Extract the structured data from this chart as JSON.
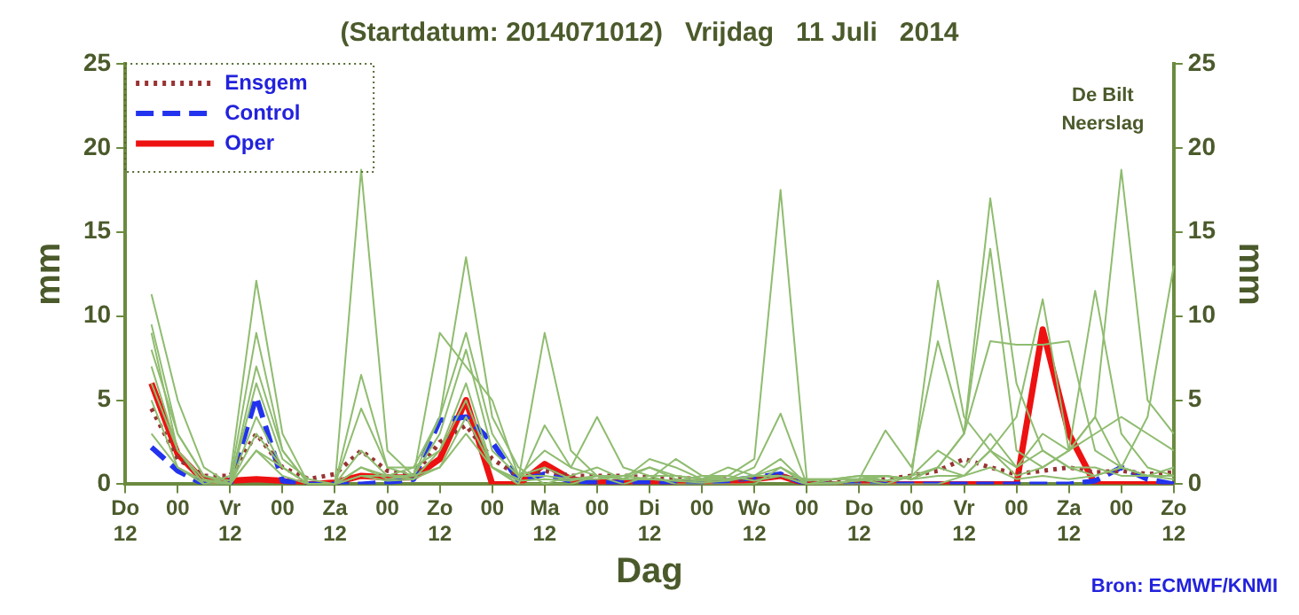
{
  "chart_data": {
    "type": "line",
    "title": "(Startdatum: 2014071012)   Vrijdag   11 Juli   2014",
    "xlabel": "Dag",
    "ylabel": "mm",
    "y2label": "mm",
    "annotations": [
      "De Bilt",
      "Neerslag",
      "Bron: ECMWF/KNMI"
    ],
    "categories": [
      "Do\n12",
      null,
      "00",
      null,
      "Vr\n12",
      null,
      "00",
      null,
      "Za\n12",
      null,
      "00",
      null,
      "Zo\n12",
      null,
      "00",
      null,
      "Ma\n12",
      null,
      "00",
      null,
      "Di\n12",
      null,
      "00",
      null,
      "Wo\n12",
      null,
      "00",
      null,
      "Do\n12",
      null,
      "00",
      null,
      "Vr\n12",
      null,
      "00",
      null,
      "Za\n12",
      null,
      "00",
      null,
      "Zo\n12"
    ],
    "ylim": [
      0,
      25
    ],
    "yticks": [
      0,
      5,
      10,
      15,
      20,
      25
    ],
    "y2lim": [
      0,
      25
    ],
    "y2ticks": [
      0,
      5,
      10,
      15,
      20,
      25
    ],
    "grid": false,
    "legend": "top left",
    "marker": "none",
    "line_style": "solid",
    "series": [
      {
        "color": "#8fbc6f",
        "values": [
          null,
          5,
          1,
          0,
          0,
          2,
          1,
          0,
          0,
          18.7,
          2,
          0.5,
          1,
          3,
          1,
          0,
          0,
          0,
          0.5,
          0,
          0.5,
          0,
          0,
          0,
          0,
          1,
          0,
          0,
          0,
          0,
          0,
          0,
          0.5,
          2,
          0.5,
          1,
          2,
          4,
          18.7,
          5,
          3
        ]
      },
      {
        "color": "#8fbc6f",
        "values": [
          null,
          8,
          3,
          0.5,
          0,
          3,
          1,
          0,
          0,
          2,
          0.5,
          0.5,
          4,
          13.5,
          4,
          1,
          0,
          0.5,
          1,
          0.3,
          0.3,
          0.2,
          0.5,
          0.5,
          0.2,
          0.5,
          0,
          0,
          0.3,
          0.2,
          0.5,
          1,
          3,
          17,
          6,
          2,
          1,
          0.5,
          1,
          0.5,
          1
        ]
      },
      {
        "color": "#8fbc6f",
        "values": [
          null,
          6,
          2,
          0,
          0.5,
          12.1,
          3,
          0,
          0,
          1,
          0.5,
          0.3,
          2,
          5,
          1,
          0,
          3.5,
          1,
          0.5,
          0.3,
          1.5,
          1,
          0.3,
          0.5,
          1.5,
          17.5,
          0.3,
          0.3,
          0.3,
          0,
          0.5,
          2,
          1,
          3,
          1,
          2,
          1,
          1,
          0.5,
          0.5,
          0.5
        ]
      },
      {
        "color": "#8fbc6f",
        "values": [
          null,
          11.3,
          5,
          1,
          0,
          7,
          2,
          0,
          0,
          1,
          0.3,
          0.5,
          3,
          8,
          2,
          0.5,
          1,
          0.3,
          0.5,
          0.3,
          1,
          0.5,
          0.3,
          1,
          0.5,
          1,
          0.2,
          0.3,
          0.5,
          0.2,
          0.5,
          12.1,
          4,
          2,
          1,
          3,
          2,
          11.5,
          3,
          1,
          0.5
        ]
      },
      {
        "color": "#8fbc6f",
        "values": [
          null,
          9,
          2,
          0,
          0,
          4,
          1,
          0,
          0,
          0.5,
          0.5,
          1,
          2,
          6,
          1,
          0.3,
          9,
          2,
          0.5,
          0.5,
          0.3,
          1.5,
          0.5,
          0.3,
          0.5,
          0.5,
          0,
          0.3,
          0.5,
          0.5,
          0.3,
          1,
          0.5,
          2,
          4,
          11,
          2,
          4,
          1,
          4,
          13
        ]
      },
      {
        "color": "#8fbc6f",
        "values": [
          null,
          9.5,
          3,
          0.5,
          0.2,
          9,
          2,
          0,
          0,
          4.5,
          1,
          1,
          4,
          9,
          3,
          0.5,
          2,
          1,
          4,
          1,
          0.5,
          0.5,
          0.3,
          0.3,
          1,
          4.2,
          0,
          0,
          0.3,
          3.2,
          1,
          8.5,
          3,
          14,
          2,
          1,
          2,
          3,
          4,
          3,
          2
        ]
      },
      {
        "color": "#8fbc6f",
        "values": [
          null,
          7,
          2,
          0.3,
          0,
          6,
          1.5,
          0.3,
          0,
          6.5,
          1,
          0.5,
          9,
          7,
          5,
          0.5,
          0.5,
          0.3,
          0.3,
          0.5,
          1,
          0.3,
          0.2,
          0.3,
          0.5,
          0.5,
          0.3,
          0.3,
          0.3,
          0.5,
          0.3,
          1,
          3,
          8.5,
          8.3,
          8.3,
          8.5,
          2,
          1,
          0.5,
          0.3
        ]
      },
      {
        "color": "#8fbc6f",
        "values": [
          null,
          3,
          1,
          0.2,
          0,
          2,
          0.5,
          0,
          0,
          0.5,
          0.2,
          0.3,
          1,
          4,
          1,
          0.2,
          0.3,
          0.2,
          0.5,
          0.3,
          0.3,
          0.2,
          0.1,
          0.2,
          0.5,
          1.5,
          0,
          0.1,
          0.2,
          0.5,
          0.3,
          0.5,
          0.5,
          1,
          0.3,
          0.5,
          0.3,
          0.5,
          1,
          0.5,
          0.5
        ]
      },
      {
        "name": "Ensgem",
        "color": "#993333",
        "line_style": "dotted",
        "values": [
          null,
          4.5,
          1.5,
          0.5,
          0.5,
          3,
          1,
          0.3,
          0.6,
          2,
          0.8,
          0.5,
          2.5,
          3.5,
          1.5,
          0.5,
          0.8,
          0.5,
          0.5,
          0.5,
          0.4,
          0.4,
          0.3,
          0.3,
          0.3,
          0.5,
          0.2,
          0.2,
          0.2,
          0.3,
          0.5,
          0.8,
          1.5,
          1,
          0.6,
          0.8,
          1,
          0.7,
          0.8,
          0.6,
          0.7
        ]
      },
      {
        "name": "Control",
        "color": "#2233ee",
        "line_style": "dashed",
        "values": [
          null,
          2.2,
          0.8,
          0,
          0,
          5.2,
          0.2,
          0,
          0,
          0,
          0.1,
          0.3,
          3.8,
          4,
          2.5,
          0.2,
          0.6,
          0.2,
          0.1,
          0.1,
          0.1,
          0.1,
          0.1,
          0.2,
          0.4,
          0.6,
          0,
          0,
          0,
          0,
          0,
          0,
          0,
          0,
          0,
          0,
          0,
          0.2,
          1,
          0.3,
          0
        ]
      },
      {
        "name": "Oper",
        "color": "#ee1111",
        "line_style": "solid",
        "values": [
          null,
          6,
          1.8,
          0.2,
          0.2,
          0.3,
          0.2,
          0,
          0.1,
          0.5,
          0.4,
          0.4,
          1.5,
          5,
          0,
          0,
          1.2,
          0.3,
          0.1,
          0.1,
          0.1,
          0.1,
          0.1,
          0.1,
          0.3,
          0.5,
          0,
          0,
          0,
          0,
          0,
          0,
          0,
          0,
          0,
          9.2,
          3,
          0,
          0,
          0,
          0
        ]
      }
    ]
  }
}
